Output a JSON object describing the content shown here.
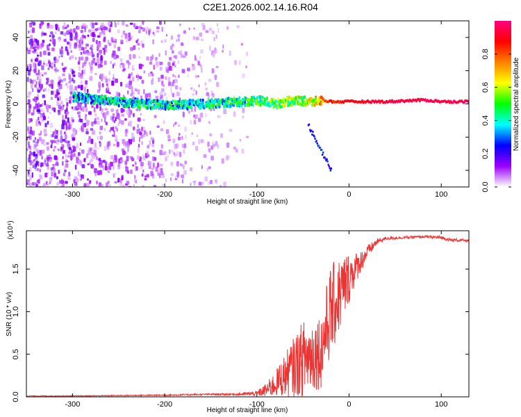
{
  "title": "C2E1.2026.002.14.16.R04",
  "chart_data": [
    {
      "type": "heatmap",
      "name": "spectrogram",
      "xlabel": "Height of straight line (km)",
      "ylabel": "Frequency (Hz)",
      "xlim": [
        -350,
        130
      ],
      "ylim": [
        -50,
        50
      ],
      "xticks": [
        -300,
        -200,
        -100,
        0,
        100
      ],
      "yticks": [
        -40,
        -20,
        0,
        20,
        40
      ],
      "colorbar": {
        "label": "Normalized spectral amplitude",
        "range": [
          0,
          1
        ],
        "ticks": [
          "0.0",
          "0.2",
          "0.4",
          "0.6",
          "0.8"
        ],
        "tick_values": [
          0.0,
          0.2,
          0.4,
          0.6,
          0.8
        ],
        "colors": [
          "#ffffff",
          "#9b00ff",
          "#0000ff",
          "#00ffff",
          "#00ff00",
          "#ffff00",
          "#ff8000",
          "#ff0000",
          "#ff0080"
        ]
      },
      "signal_track": {
        "x": [
          -300,
          -250,
          -200,
          -150,
          -120,
          -100,
          -80,
          -60,
          -40,
          -30,
          -20,
          0,
          40,
          80,
          100,
          130
        ],
        "freq": [
          4,
          1,
          -1,
          0,
          1,
          2,
          0,
          2,
          1,
          2,
          1,
          1,
          1,
          2,
          1,
          1
        ],
        "amplitude": [
          0.35,
          0.38,
          0.4,
          0.4,
          0.42,
          0.45,
          0.5,
          0.55,
          0.62,
          0.75,
          0.85,
          0.88,
          0.92,
          0.95,
          0.95,
          0.95
        ]
      }
    },
    {
      "type": "line",
      "name": "snr",
      "xlabel": "Height of straight line (km)",
      "ylabel": "SNR (10 * v/v)",
      "scale_note": "(x10⁴)",
      "xlim": [
        -350,
        130
      ],
      "ylim": [
        0,
        1.95
      ],
      "xticks": [
        -300,
        -200,
        -100,
        0,
        100
      ],
      "yticks": [
        "0.0",
        "0.5",
        "1.0",
        "1.5"
      ],
      "ytick_values": [
        0.0,
        0.5,
        1.0,
        1.5
      ],
      "series": [
        {
          "name": "SNR",
          "color": "#ee3333",
          "x": [
            -350,
            -300,
            -250,
            -200,
            -150,
            -120,
            -100,
            -90,
            -80,
            -70,
            -60,
            -50,
            -40,
            -30,
            -25,
            -20,
            -15,
            -10,
            -5,
            0,
            10,
            20,
            30,
            40,
            60,
            80,
            100,
            110,
            120,
            130
          ],
          "y_mean": [
            0.01,
            0.01,
            0.015,
            0.02,
            0.03,
            0.03,
            0.04,
            0.08,
            0.15,
            0.25,
            0.35,
            0.45,
            0.5,
            0.55,
            0.8,
            1.0,
            1.1,
            1.2,
            1.3,
            1.4,
            1.55,
            1.7,
            1.82,
            1.86,
            1.87,
            1.88,
            1.87,
            1.84,
            1.84,
            1.83
          ],
          "y_spread": [
            0.005,
            0.005,
            0.006,
            0.008,
            0.01,
            0.015,
            0.03,
            0.08,
            0.15,
            0.25,
            0.35,
            0.45,
            0.45,
            0.45,
            0.5,
            0.55,
            0.5,
            0.45,
            0.4,
            0.3,
            0.15,
            0.08,
            0.04,
            0.02,
            0.015,
            0.015,
            0.02,
            0.02,
            0.02,
            0.01
          ]
        }
      ]
    }
  ]
}
